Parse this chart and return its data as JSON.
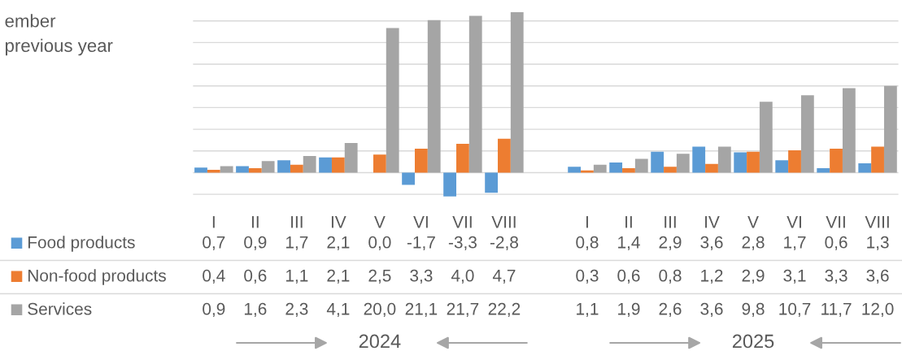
{
  "chart_data": {
    "type": "bar",
    "title": "ember\nprevious year",
    "categories": [
      "I",
      "II",
      "III",
      "IV",
      "V",
      "VI",
      "VII",
      "VIII",
      null,
      "I",
      "II",
      "III",
      "IV",
      "V",
      "VI",
      "VII",
      "VIII"
    ],
    "series": [
      {
        "name": "Food products",
        "color": "#5b9bd5",
        "values": [
          0.7,
          0.9,
          1.7,
          2.1,
          0.0,
          -1.7,
          -3.3,
          -2.8,
          null,
          0.8,
          1.4,
          2.9,
          3.6,
          2.8,
          1.7,
          0.6,
          1.3
        ],
        "value_labels": [
          "0,7",
          "0,9",
          "1,7",
          "2,1",
          "0,0",
          "-1,7",
          "-3,3",
          "-2,8",
          null,
          "0,8",
          "1,4",
          "2,9",
          "3,6",
          "2,8",
          "1,7",
          "0,6",
          "1,3"
        ]
      },
      {
        "name": "Non-food products",
        "color": "#ed7d31",
        "values": [
          0.4,
          0.6,
          1.1,
          2.1,
          2.5,
          3.3,
          4.0,
          4.7,
          null,
          0.3,
          0.6,
          0.8,
          1.2,
          2.9,
          3.1,
          3.3,
          3.6
        ],
        "value_labels": [
          "0,4",
          "0,6",
          "1,1",
          "2,1",
          "2,5",
          "3,3",
          "4,0",
          "4,7",
          null,
          "0,3",
          "0,6",
          "0,8",
          "1,2",
          "2,9",
          "3,1",
          "3,3",
          "3,6"
        ]
      },
      {
        "name": "Services",
        "color": "#a5a5a5",
        "values": [
          0.9,
          1.6,
          2.3,
          4.1,
          20.0,
          21.1,
          21.7,
          22.2,
          null,
          1.1,
          1.9,
          2.6,
          3.6,
          9.8,
          10.7,
          11.7,
          12.0
        ],
        "value_labels": [
          "0,9",
          "1,6",
          "2,3",
          "4,1",
          "20,0",
          "21,1",
          "21,7",
          "22,2",
          null,
          "1,1",
          "1,9",
          "2,6",
          "3,6",
          "9,8",
          "10,7",
          "11,7",
          "12,0"
        ]
      }
    ],
    "annotations": [
      "2024",
      "2025"
    ],
    "yticks": [
      {
        "value": -3,
        "label": null
      },
      {
        "value": 0,
        "label": null
      },
      {
        "value": 3,
        "label": null
      },
      {
        "value": 6,
        "label": null
      },
      {
        "value": 9,
        "label": null
      },
      {
        "value": 12,
        "label": null
      },
      {
        "value": 15,
        "label": null
      },
      {
        "value": 18,
        "label": null
      },
      {
        "value": 21,
        "label": null
      }
    ],
    "tick_labels": "x",
    "grid": "y",
    "legend": "bottom"
  }
}
